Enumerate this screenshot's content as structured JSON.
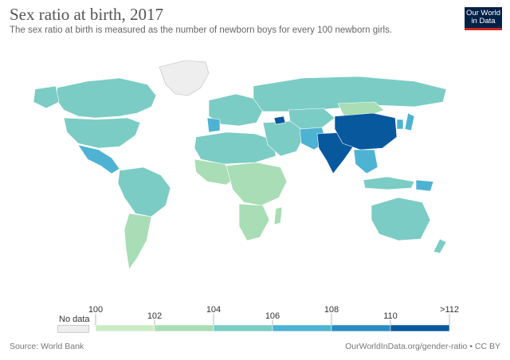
{
  "header": {
    "title": "Sex ratio at birth, 2017",
    "subtitle": "The sex ratio at birth is measured as the number of newborn boys for every 100 newborn girls."
  },
  "logo": {
    "line1": "Our World",
    "line2": "in Data",
    "bg_color": "#002147",
    "accent_color": "#ce261e"
  },
  "legend": {
    "no_data_label": "No data",
    "no_data_color": "#eeeeee",
    "tick_labels": [
      "100",
      "102",
      "104",
      "106",
      "108",
      "110",
      ">112"
    ],
    "bins": [
      {
        "min": 100,
        "max": 102,
        "color": "#ccebc5"
      },
      {
        "min": 102,
        "max": 104,
        "color": "#a8ddb5"
      },
      {
        "min": 104,
        "max": 106,
        "color": "#7bccc4"
      },
      {
        "min": 106,
        "max": 108,
        "color": "#4eb3d3"
      },
      {
        "min": 108,
        "max": 110,
        "color": "#2b8cbe"
      },
      {
        "min": 110,
        "max": 112,
        "color": "#08589e"
      }
    ]
  },
  "footer": {
    "source": "Source: World Bank",
    "license": "OurWorldInData.org/gender-ratio • CC BY"
  }
}
